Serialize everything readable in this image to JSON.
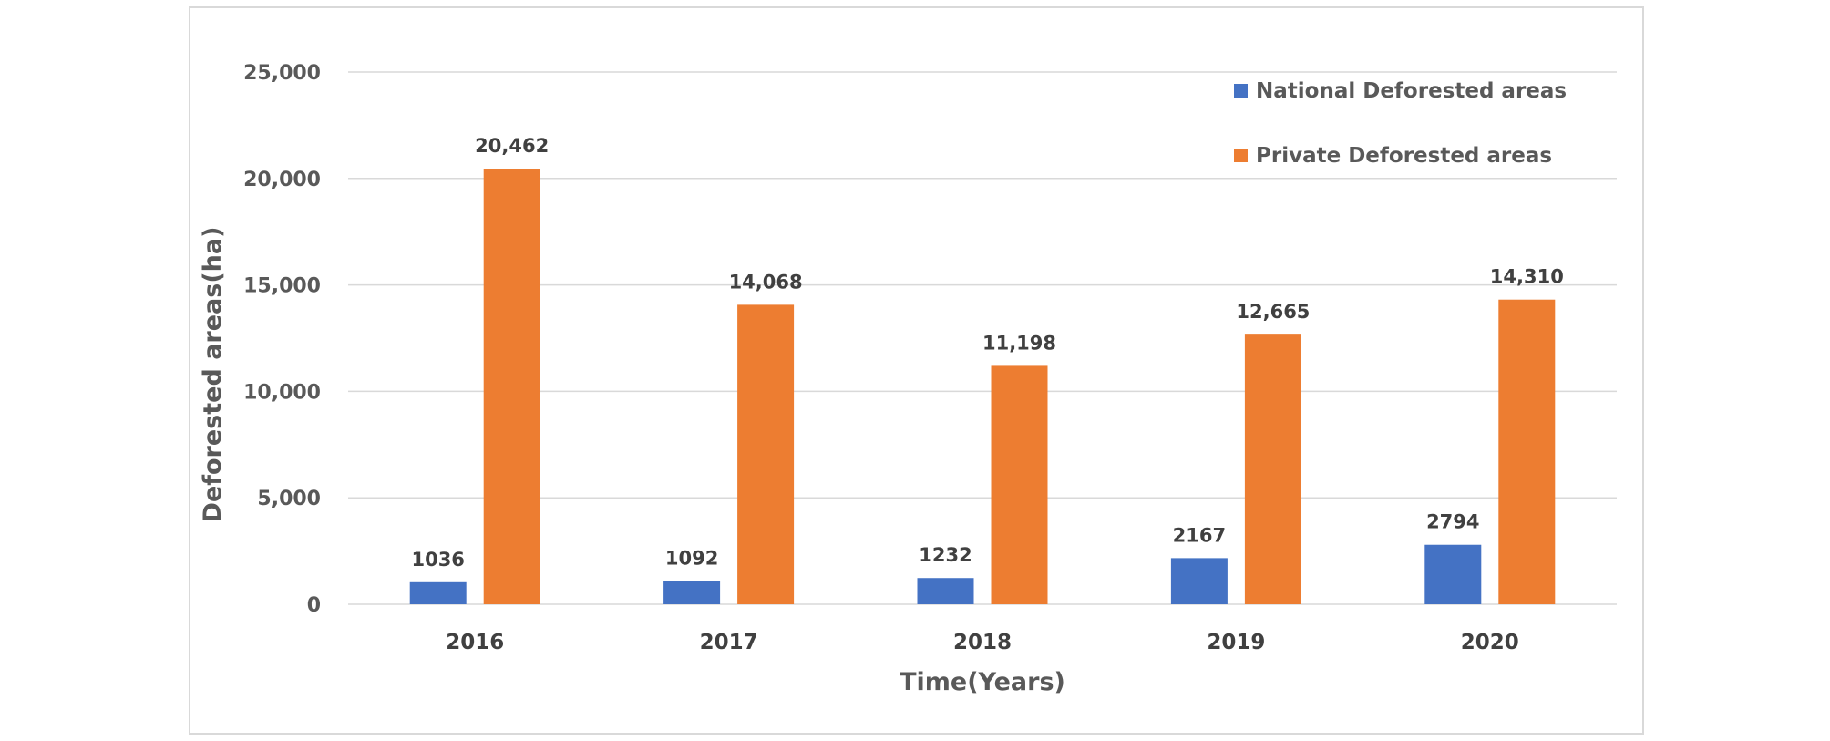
{
  "chart_data": {
    "type": "bar",
    "categories": [
      "2016",
      "2017",
      "2018",
      "2019",
      "2020"
    ],
    "series": [
      {
        "name": "National Deforested areas",
        "color": "#4472C4",
        "values": [
          1036,
          1092,
          1232,
          2167,
          2794
        ],
        "labels": [
          "1036",
          "1092",
          "1232",
          "2167",
          "2794"
        ]
      },
      {
        "name": "Private Deforested areas",
        "color": "#ED7D31",
        "values": [
          20462,
          14068,
          11198,
          12665,
          14310
        ],
        "labels": [
          "20,462",
          "14,068",
          "11,198",
          "12,665",
          "14,310"
        ]
      }
    ],
    "xlabel": "Time(Years)",
    "ylabel": "Deforested areas(ha)",
    "ylim": [
      0,
      25000
    ],
    "yticks": [
      0,
      5000,
      10000,
      15000,
      20000,
      25000
    ],
    "ytick_labels": [
      "0",
      "5,000",
      "10,000",
      "15,000",
      "20,000",
      "25,000"
    ],
    "grid": true,
    "gridline_color": "#d9d9d9",
    "legend_position": "top-right"
  }
}
